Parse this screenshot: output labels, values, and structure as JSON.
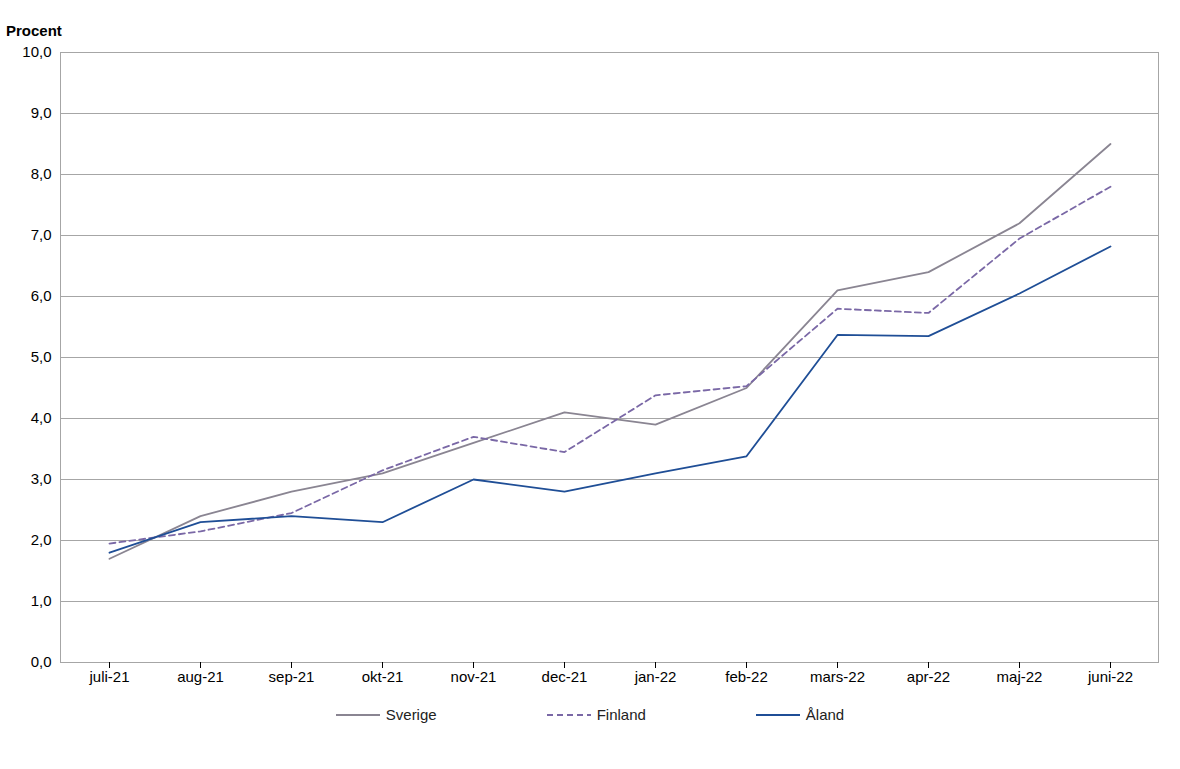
{
  "chart_data": {
    "type": "line",
    "y_label": "Procent",
    "categories": [
      "juli-21",
      "aug-21",
      "sep-21",
      "okt-21",
      "nov-21",
      "dec-21",
      "jan-22",
      "feb-22",
      "mars-22",
      "apr-22",
      "maj-22",
      "juni-22"
    ],
    "series": [
      {
        "name": "Sverige",
        "color": "#8a8592",
        "line_style": "solid",
        "values": [
          1.7,
          2.4,
          2.8,
          3.1,
          3.6,
          4.1,
          3.9,
          4.5,
          6.1,
          6.4,
          7.2,
          8.5
        ]
      },
      {
        "name": "Finland",
        "color": "#7a68a6",
        "line_style": "dashed",
        "values": [
          1.95,
          2.15,
          2.45,
          3.15,
          3.7,
          3.45,
          4.38,
          4.53,
          5.8,
          5.73,
          6.95,
          7.8
        ]
      },
      {
        "name": "Åland",
        "color": "#1f4e96",
        "line_style": "solid",
        "values": [
          1.8,
          2.3,
          2.4,
          2.3,
          3.0,
          2.8,
          3.1,
          3.38,
          5.37,
          5.35,
          6.05,
          6.82
        ]
      }
    ],
    "ylim": [
      0,
      10
    ],
    "yticks": [
      {
        "value": 0,
        "label": "0,0"
      },
      {
        "value": 1,
        "label": "1,0"
      },
      {
        "value": 2,
        "label": "2,0"
      },
      {
        "value": 3,
        "label": "3,0"
      },
      {
        "value": 4,
        "label": "4,0"
      },
      {
        "value": 5,
        "label": "5,0"
      },
      {
        "value": 6,
        "label": "6,0"
      },
      {
        "value": 7,
        "label": "7,0"
      },
      {
        "value": 8,
        "label": "8,0"
      },
      {
        "value": 9,
        "label": "9,0"
      },
      {
        "value": 10,
        "label": "10,0"
      }
    ],
    "grid": true,
    "legend": "bottom"
  }
}
